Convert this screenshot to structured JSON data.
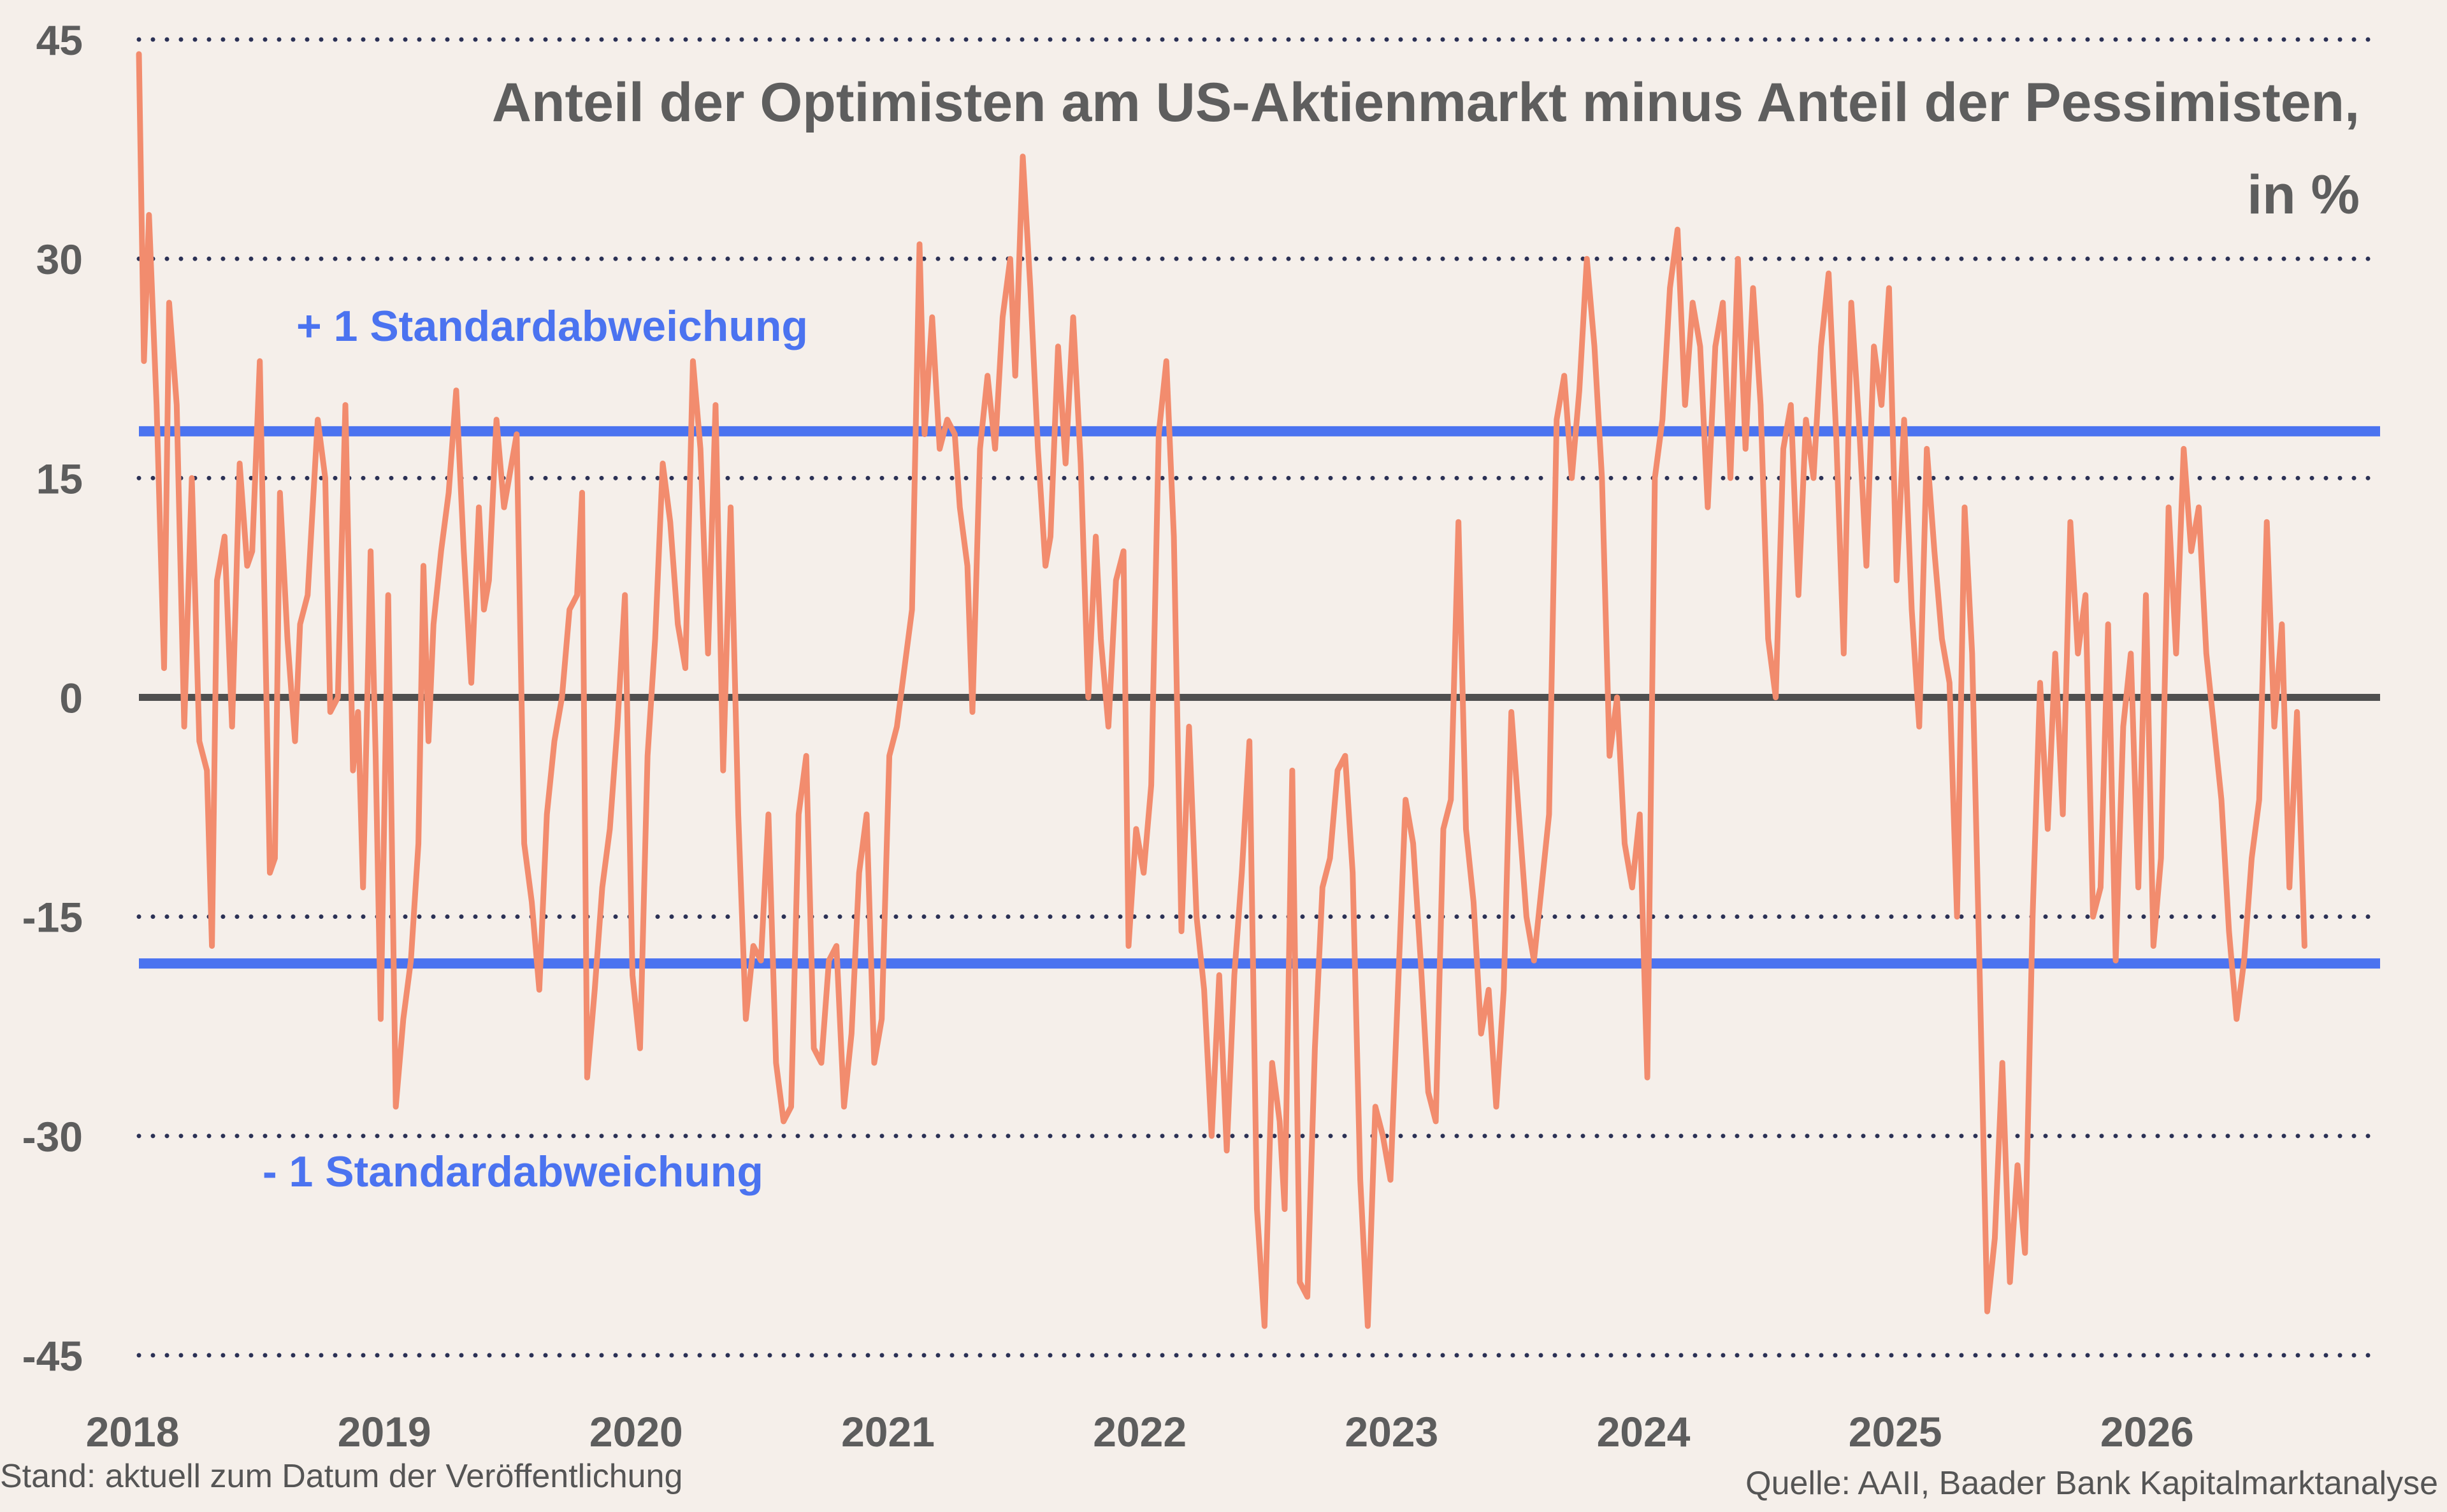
{
  "chart_data": {
    "type": "line",
    "title_line1": "Anteil der Optimisten am US-Aktienmarkt minus Anteil der Pessimisten,",
    "title_line2": "in %",
    "ylim": [
      -45,
      45
    ],
    "yticks": [
      {
        "value": 45,
        "label": "45"
      },
      {
        "value": 30,
        "label": "30"
      },
      {
        "value": 15,
        "label": "15"
      },
      {
        "value": 0,
        "label": "0"
      },
      {
        "value": -15,
        "label": "-15"
      },
      {
        "value": -30,
        "label": "-30"
      },
      {
        "value": -45,
        "label": "-45"
      }
    ],
    "xlim": [
      2018.0,
      2026.9
    ],
    "xticks": [
      {
        "value": 2018,
        "label": "2018"
      },
      {
        "value": 2019,
        "label": "2019"
      },
      {
        "value": 2020,
        "label": "2020"
      },
      {
        "value": 2021,
        "label": "2021"
      },
      {
        "value": 2022,
        "label": "2022"
      },
      {
        "value": 2023,
        "label": "2023"
      },
      {
        "value": 2024,
        "label": "2024"
      },
      {
        "value": 2025,
        "label": "2025"
      },
      {
        "value": 2026,
        "label": "2026"
      }
    ],
    "grid": "dotted horizontal",
    "bands": [
      {
        "value": 18.2,
        "label": "+ 1 Standardabweichung",
        "color": "#4b73f0"
      },
      {
        "value": -18.2,
        "label": "- 1 Standardabweichung",
        "color": "#4b73f0"
      }
    ],
    "zero_line_color": "#4f4f4f",
    "series": [
      {
        "color": "#f28c6e",
        "points": [
          [
            2018.0,
            44
          ],
          [
            2018.02,
            23
          ],
          [
            2018.04,
            33
          ],
          [
            2018.07,
            20
          ],
          [
            2018.1,
            2
          ],
          [
            2018.12,
            27
          ],
          [
            2018.15,
            20
          ],
          [
            2018.18,
            -2
          ],
          [
            2018.21,
            15
          ],
          [
            2018.24,
            -3
          ],
          [
            2018.27,
            -5
          ],
          [
            2018.29,
            -17
          ],
          [
            2018.31,
            8
          ],
          [
            2018.34,
            11
          ],
          [
            2018.37,
            -2
          ],
          [
            2018.4,
            16
          ],
          [
            2018.43,
            9
          ],
          [
            2018.45,
            10
          ],
          [
            2018.48,
            23
          ],
          [
            2018.52,
            -12
          ],
          [
            2018.54,
            -11
          ],
          [
            2018.56,
            14
          ],
          [
            2018.59,
            4
          ],
          [
            2018.62,
            -3
          ],
          [
            2018.64,
            5
          ],
          [
            2018.67,
            7
          ],
          [
            2018.71,
            19
          ],
          [
            2018.74,
            15
          ],
          [
            2018.76,
            -1
          ],
          [
            2018.79,
            0
          ],
          [
            2018.82,
            20
          ],
          [
            2018.85,
            -5
          ],
          [
            2018.87,
            -1
          ],
          [
            2018.89,
            -13
          ],
          [
            2018.92,
            10
          ],
          [
            2018.94,
            -4
          ],
          [
            2018.96,
            -22
          ],
          [
            2018.99,
            7
          ],
          [
            2019.02,
            -28
          ],
          [
            2019.05,
            -22
          ],
          [
            2019.08,
            -18
          ],
          [
            2019.11,
            -10
          ],
          [
            2019.13,
            9
          ],
          [
            2019.15,
            -3
          ],
          [
            2019.17,
            5
          ],
          [
            2019.2,
            10
          ],
          [
            2019.23,
            14
          ],
          [
            2019.26,
            21
          ],
          [
            2019.29,
            10
          ],
          [
            2019.32,
            1
          ],
          [
            2019.35,
            13
          ],
          [
            2019.37,
            6
          ],
          [
            2019.39,
            8
          ],
          [
            2019.42,
            19
          ],
          [
            2019.45,
            13
          ],
          [
            2019.48,
            16
          ],
          [
            2019.5,
            18
          ],
          [
            2019.53,
            -10
          ],
          [
            2019.56,
            -14
          ],
          [
            2019.59,
            -20
          ],
          [
            2019.62,
            -8
          ],
          [
            2019.65,
            -3
          ],
          [
            2019.68,
            0
          ],
          [
            2019.71,
            6
          ],
          [
            2019.74,
            7
          ],
          [
            2019.76,
            14
          ],
          [
            2019.78,
            -26
          ],
          [
            2019.81,
            -20
          ],
          [
            2019.84,
            -13
          ],
          [
            2019.87,
            -9
          ],
          [
            2019.9,
            -2
          ],
          [
            2019.93,
            7
          ],
          [
            2019.96,
            -19
          ],
          [
            2019.99,
            -24
          ],
          [
            2020.02,
            -4
          ],
          [
            2020.05,
            4
          ],
          [
            2020.08,
            16
          ],
          [
            2020.11,
            12
          ],
          [
            2020.14,
            5
          ],
          [
            2020.17,
            2
          ],
          [
            2020.2,
            23
          ],
          [
            2020.23,
            17
          ],
          [
            2020.26,
            3
          ],
          [
            2020.29,
            20
          ],
          [
            2020.32,
            -5
          ],
          [
            2020.35,
            13
          ],
          [
            2020.38,
            -8
          ],
          [
            2020.41,
            -22
          ],
          [
            2020.44,
            -17
          ],
          [
            2020.47,
            -18
          ],
          [
            2020.5,
            -8
          ],
          [
            2020.53,
            -25
          ],
          [
            2020.56,
            -29
          ],
          [
            2020.59,
            -28
          ],
          [
            2020.62,
            -8
          ],
          [
            2020.65,
            -4
          ],
          [
            2020.68,
            -24
          ],
          [
            2020.71,
            -25
          ],
          [
            2020.74,
            -18
          ],
          [
            2020.77,
            -17
          ],
          [
            2020.8,
            -28
          ],
          [
            2020.83,
            -23
          ],
          [
            2020.86,
            -12
          ],
          [
            2020.89,
            -8
          ],
          [
            2020.92,
            -25
          ],
          [
            2020.95,
            -22
          ],
          [
            2020.98,
            -4
          ],
          [
            2021.01,
            -2
          ],
          [
            2021.04,
            2
          ],
          [
            2021.07,
            6
          ],
          [
            2021.1,
            31
          ],
          [
            2021.12,
            18
          ],
          [
            2021.15,
            26
          ],
          [
            2021.18,
            17
          ],
          [
            2021.21,
            19
          ],
          [
            2021.24,
            18
          ],
          [
            2021.26,
            13
          ],
          [
            2021.29,
            9
          ],
          [
            2021.31,
            -1
          ],
          [
            2021.34,
            17
          ],
          [
            2021.37,
            22
          ],
          [
            2021.4,
            17
          ],
          [
            2021.43,
            26
          ],
          [
            2021.46,
            30
          ],
          [
            2021.48,
            22
          ],
          [
            2021.51,
            37
          ],
          [
            2021.54,
            28
          ],
          [
            2021.57,
            17
          ],
          [
            2021.6,
            9
          ],
          [
            2021.62,
            11
          ],
          [
            2021.65,
            24
          ],
          [
            2021.68,
            16
          ],
          [
            2021.71,
            26
          ],
          [
            2021.74,
            16
          ],
          [
            2021.77,
            0
          ],
          [
            2021.8,
            11
          ],
          [
            2021.82,
            4
          ],
          [
            2021.85,
            -2
          ],
          [
            2021.88,
            8
          ],
          [
            2021.91,
            10
          ],
          [
            2021.93,
            -17
          ],
          [
            2021.96,
            -9
          ],
          [
            2021.99,
            -12
          ],
          [
            2022.02,
            -6
          ],
          [
            2022.05,
            18
          ],
          [
            2022.08,
            23
          ],
          [
            2022.11,
            11
          ],
          [
            2022.14,
            -16
          ],
          [
            2022.17,
            -2
          ],
          [
            2022.2,
            -15
          ],
          [
            2022.23,
            -20
          ],
          [
            2022.26,
            -30
          ],
          [
            2022.29,
            -19
          ],
          [
            2022.32,
            -31
          ],
          [
            2022.35,
            -19
          ],
          [
            2022.38,
            -12
          ],
          [
            2022.41,
            -3
          ],
          [
            2022.44,
            -35
          ],
          [
            2022.47,
            -43
          ],
          [
            2022.5,
            -25
          ],
          [
            2022.53,
            -29
          ],
          [
            2022.55,
            -35
          ],
          [
            2022.58,
            -5
          ],
          [
            2022.61,
            -40
          ],
          [
            2022.64,
            -41
          ],
          [
            2022.67,
            -24
          ],
          [
            2022.7,
            -13
          ],
          [
            2022.73,
            -11
          ],
          [
            2022.76,
            -5
          ],
          [
            2022.79,
            -4
          ],
          [
            2022.82,
            -12
          ],
          [
            2022.85,
            -33
          ],
          [
            2022.88,
            -43
          ],
          [
            2022.91,
            -28
          ],
          [
            2022.94,
            -30
          ],
          [
            2022.97,
            -33
          ],
          [
            2023.0,
            -20
          ],
          [
            2023.03,
            -7
          ],
          [
            2023.06,
            -10
          ],
          [
            2023.09,
            -18
          ],
          [
            2023.12,
            -27
          ],
          [
            2023.15,
            -29
          ],
          [
            2023.18,
            -9
          ],
          [
            2023.21,
            -7
          ],
          [
            2023.24,
            12
          ],
          [
            2023.27,
            -9
          ],
          [
            2023.3,
            -14
          ],
          [
            2023.33,
            -23
          ],
          [
            2023.36,
            -20
          ],
          [
            2023.39,
            -28
          ],
          [
            2023.42,
            -20
          ],
          [
            2023.45,
            -1
          ],
          [
            2023.48,
            -8
          ],
          [
            2023.51,
            -15
          ],
          [
            2023.54,
            -18
          ],
          [
            2023.57,
            -13
          ],
          [
            2023.6,
            -8
          ],
          [
            2023.63,
            19
          ],
          [
            2023.66,
            22
          ],
          [
            2023.69,
            15
          ],
          [
            2023.72,
            21
          ],
          [
            2023.75,
            30
          ],
          [
            2023.78,
            24
          ],
          [
            2023.81,
            15
          ],
          [
            2023.84,
            -4
          ],
          [
            2023.87,
            0
          ],
          [
            2023.9,
            -10
          ],
          [
            2023.93,
            -13
          ],
          [
            2023.96,
            -8
          ],
          [
            2023.99,
            -26
          ],
          [
            2024.02,
            15
          ],
          [
            2024.05,
            19
          ],
          [
            2024.08,
            28
          ],
          [
            2024.11,
            32
          ],
          [
            2024.14,
            20
          ],
          [
            2024.17,
            27
          ],
          [
            2024.2,
            24
          ],
          [
            2024.23,
            13
          ],
          [
            2024.26,
            24
          ],
          [
            2024.29,
            27
          ],
          [
            2024.32,
            15
          ],
          [
            2024.35,
            30
          ],
          [
            2024.38,
            17
          ],
          [
            2024.41,
            28
          ],
          [
            2024.44,
            20
          ],
          [
            2024.47,
            4
          ],
          [
            2024.5,
            0
          ],
          [
            2024.53,
            17
          ],
          [
            2024.56,
            20
          ],
          [
            2024.59,
            7
          ],
          [
            2024.62,
            19
          ],
          [
            2024.65,
            15
          ],
          [
            2024.68,
            24
          ],
          [
            2024.71,
            29
          ],
          [
            2024.74,
            18
          ],
          [
            2024.77,
            3
          ],
          [
            2024.8,
            27
          ],
          [
            2024.83,
            19
          ],
          [
            2024.86,
            9
          ],
          [
            2024.89,
            24
          ],
          [
            2024.92,
            20
          ],
          [
            2024.95,
            28
          ],
          [
            2024.98,
            8
          ],
          [
            2025.01,
            19
          ],
          [
            2025.04,
            6
          ],
          [
            2025.07,
            -2
          ],
          [
            2025.1,
            17
          ],
          [
            2025.13,
            10
          ],
          [
            2025.16,
            4
          ],
          [
            2025.19,
            1
          ],
          [
            2025.22,
            -15
          ],
          [
            2025.25,
            13
          ],
          [
            2025.28,
            3
          ],
          [
            2025.31,
            -19
          ],
          [
            2025.34,
            -42
          ],
          [
            2025.37,
            -37
          ],
          [
            2025.4,
            -25
          ],
          [
            2025.43,
            -40
          ],
          [
            2025.46,
            -32
          ],
          [
            2025.49,
            -38
          ],
          [
            2025.52,
            -15
          ],
          [
            2025.55,
            1
          ],
          [
            2025.58,
            -9
          ],
          [
            2025.61,
            3
          ],
          [
            2025.64,
            -8
          ],
          [
            2025.67,
            12
          ],
          [
            2025.7,
            3
          ],
          [
            2025.73,
            7
          ],
          [
            2025.76,
            -15
          ],
          [
            2025.79,
            -13
          ],
          [
            2025.82,
            5
          ],
          [
            2025.85,
            -18
          ],
          [
            2025.88,
            -2
          ],
          [
            2025.91,
            3
          ],
          [
            2025.94,
            -13
          ],
          [
            2025.97,
            7
          ],
          [
            2026.0,
            -17
          ],
          [
            2026.03,
            -11
          ],
          [
            2026.06,
            13
          ],
          [
            2026.09,
            3
          ],
          [
            2026.12,
            17
          ],
          [
            2026.15,
            10
          ],
          [
            2026.18,
            13
          ],
          [
            2026.21,
            3
          ],
          [
            2026.24,
            -2
          ],
          [
            2026.27,
            -7
          ],
          [
            2026.3,
            -16
          ],
          [
            2026.33,
            -22
          ],
          [
            2026.36,
            -18
          ],
          [
            2026.39,
            -11
          ],
          [
            2026.42,
            -7
          ],
          [
            2026.45,
            12
          ],
          [
            2026.48,
            -2
          ],
          [
            2026.51,
            5
          ],
          [
            2026.54,
            -13
          ],
          [
            2026.57,
            -1
          ],
          [
            2026.6,
            -17
          ]
        ]
      }
    ]
  },
  "footer": {
    "left": "Stand: aktuell zum Datum der Veröffentlichung",
    "right": "Quelle: AAII, Baader Bank Kapitalmarktanalyse"
  }
}
